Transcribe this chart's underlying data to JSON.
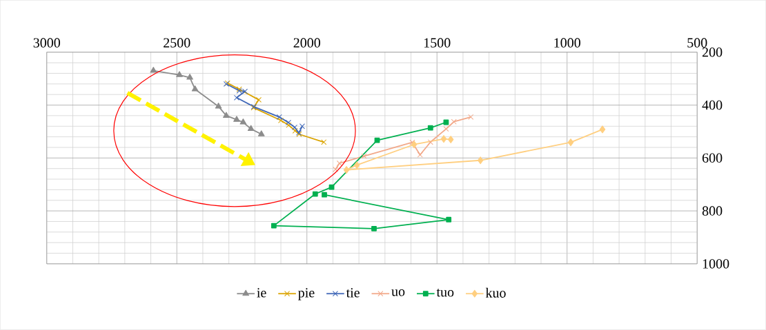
{
  "chart_data": {
    "type": "line",
    "xlim": [
      3000,
      500
    ],
    "ylim": [
      1000,
      200
    ],
    "xticks": [
      3000,
      2500,
      2000,
      1500,
      1000,
      500
    ],
    "yticks": [
      200,
      400,
      600,
      800,
      1000
    ],
    "grid": true,
    "legend": "bottom",
    "line_style": "solid",
    "series": [
      {
        "name": "ie",
        "color": "#8c8c8c",
        "marker": "triangle",
        "x": [
          2590,
          2490,
          2450,
          2430,
          2340,
          2310,
          2270,
          2245,
          2215,
          2175
        ],
        "values": [
          270,
          286,
          296,
          340,
          405,
          440,
          455,
          465,
          490,
          510
        ]
      },
      {
        "name": "pie",
        "color": "#dba400",
        "marker": "cross",
        "x": [
          2305,
          2260,
          2185,
          2205,
          2100,
          2070,
          2045,
          2030,
          1935
        ],
        "values": [
          317,
          340,
          380,
          410,
          458,
          476,
          497,
          510,
          540
        ]
      },
      {
        "name": "tie",
        "color": "#4068b8",
        "marker": "cross",
        "x": [
          2310,
          2260,
          2238,
          2270,
          2204,
          2106,
          2071,
          2047,
          2031,
          2018
        ],
        "values": [
          320,
          346,
          348,
          372,
          406,
          445,
          466,
          484,
          505,
          480
        ]
      },
      {
        "name": "uo",
        "color": "#f2a98a",
        "marker": "cross",
        "x": [
          1370,
          1435,
          1465,
          1525,
          1565,
          1595,
          1780,
          1875,
          1890
        ],
        "values": [
          445,
          463,
          490,
          540,
          588,
          541,
          593,
          620,
          643
        ]
      },
      {
        "name": "tuo",
        "color": "#00b050",
        "marker": "square",
        "x": [
          1465,
          1525,
          1730,
          1905,
          1968,
          2127,
          1742,
          1455,
          1933
        ],
        "values": [
          465,
          486,
          533,
          710,
          736,
          856,
          867,
          833,
          739
        ]
      },
      {
        "name": "kuo",
        "color": "#ffcf80",
        "marker": "diamond",
        "x": [
          1447,
          1474,
          1588,
          1808,
          1848,
          1333,
          986,
          864
        ],
        "values": [
          530,
          528,
          549,
          627,
          645,
          609,
          541,
          492
        ]
      }
    ]
  }
}
